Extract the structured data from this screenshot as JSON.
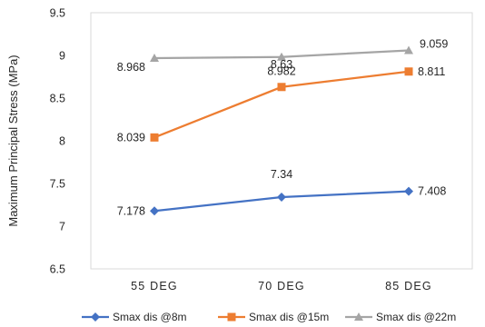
{
  "chart_data": {
    "type": "line",
    "categories": [
      "55 DEG",
      "70 DEG",
      "85 DEG"
    ],
    "ylabel": "Maximum Principal Stress (MPa)",
    "ylim": [
      6.5,
      9.5
    ],
    "yticks": [
      "6.5",
      "7",
      "7.5",
      "8",
      "8.5",
      "9",
      "9.5"
    ],
    "grid": false,
    "legend_position": "bottom",
    "series": [
      {
        "name": "Smax dis @8m",
        "color": "#4472C4",
        "marker": "diamond",
        "values": [
          7.178,
          7.34,
          7.408
        ],
        "labels": [
          "7.178",
          "7.34",
          "7.408"
        ]
      },
      {
        "name": "Smax dis @15m",
        "color": "#ED7D31",
        "marker": "square",
        "values": [
          8.039,
          8.63,
          8.811
        ],
        "labels": [
          "8.039",
          "8.63",
          "8.811"
        ]
      },
      {
        "name": "Smax dis @22m",
        "color": "#A5A5A5",
        "marker": "triangle",
        "values": [
          8.968,
          8.982,
          9.059
        ],
        "labels": [
          "8.968",
          "8.982",
          "9.059"
        ]
      }
    ]
  }
}
